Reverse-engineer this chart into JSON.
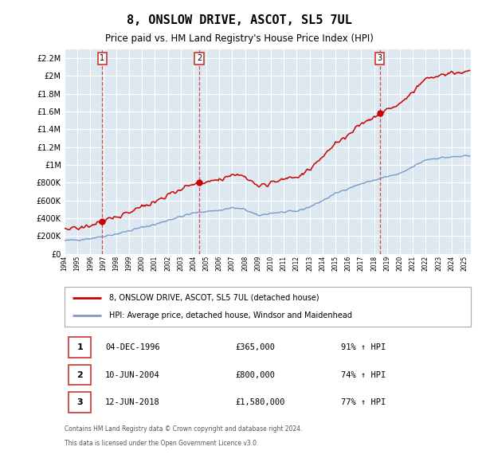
{
  "title": "8, ONSLOW DRIVE, ASCOT, SL5 7UL",
  "subtitle": "Price paid vs. HM Land Registry's House Price Index (HPI)",
  "footer1": "Contains HM Land Registry data © Crown copyright and database right 2024.",
  "footer2": "This data is licensed under the Open Government Licence v3.0.",
  "legend_red": "8, ONSLOW DRIVE, ASCOT, SL5 7UL (detached house)",
  "legend_blue": "HPI: Average price, detached house, Windsor and Maidenhead",
  "transactions": [
    {
      "num": 1,
      "date": "04-DEC-1996",
      "price": "£365,000",
      "hpi": "91% ↑ HPI",
      "year": 1996.92
    },
    {
      "num": 2,
      "date": "10-JUN-2004",
      "price": "£800,000",
      "hpi": "74% ↑ HPI",
      "year": 2004.44
    },
    {
      "num": 3,
      "date": "12-JUN-2018",
      "price": "£1,580,000",
      "hpi": "77% ↑ HPI",
      "year": 2018.44
    }
  ],
  "transaction_values": [
    365000,
    800000,
    1580000
  ],
  "ylim": [
    0,
    2300000
  ],
  "yticks": [
    0,
    200000,
    400000,
    600000,
    800000,
    1000000,
    1200000,
    1400000,
    1600000,
    1800000,
    2000000,
    2200000
  ],
  "background_color": "#ffffff",
  "plot_bg_color": "#dde8f0",
  "grid_color": "#ffffff",
  "red_color": "#cc0000",
  "blue_color": "#7799cc",
  "dashed_color": "#cc3333",
  "hpi_base_years": [
    1994,
    1995,
    1996,
    1997,
    1998,
    1999,
    2000,
    2001,
    2002,
    2003,
    2004,
    2005,
    2006,
    2007,
    2008,
    2009,
    2010,
    2011,
    2012,
    2013,
    2014,
    2015,
    2016,
    2017,
    2018,
    2019,
    2020,
    2021,
    2022,
    2023,
    2024,
    2025
  ],
  "hpi_base_vals": [
    148000,
    158000,
    172000,
    198000,
    222000,
    258000,
    298000,
    328000,
    378000,
    418000,
    458000,
    478000,
    488000,
    518000,
    498000,
    428000,
    458000,
    468000,
    478000,
    528000,
    598000,
    678000,
    738000,
    788000,
    828000,
    868000,
    898000,
    978000,
    1058000,
    1078000,
    1088000,
    1098000
  ]
}
